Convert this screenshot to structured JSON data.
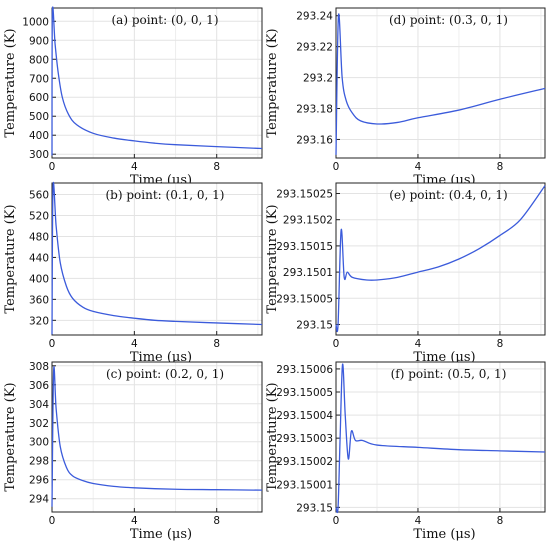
{
  "chart_data": [
    {
      "id": "a",
      "type": "line",
      "title": "(a) point: (0, 0, 1)",
      "xlabel": "Time (μs)",
      "ylabel": "Temperature (K)",
      "xlim": [
        0,
        10.2
      ],
      "ylim": [
        280,
        1070
      ],
      "x_ticks": [
        "0",
        "4",
        "8"
      ],
      "x_tick_values": [
        0,
        4,
        8
      ],
      "y_ticks": [
        "300",
        "400",
        "500",
        "600",
        "700",
        "800",
        "900",
        "1000"
      ],
      "y_tick_values": [
        300,
        400,
        500,
        600,
        700,
        800,
        900,
        1000
      ],
      "grid": true,
      "color": "#3b5bdb",
      "series": [
        {
          "values": [
            [
              0,
              293.15
            ],
            [
              0.02,
              1050
            ],
            [
              0.15,
              880
            ],
            [
              0.3,
              730
            ],
            [
              0.5,
              600
            ],
            [
              0.8,
              510
            ],
            [
              1.2,
              455
            ],
            [
              2,
              410
            ],
            [
              3,
              385
            ],
            [
              4,
              370
            ],
            [
              5,
              358
            ],
            [
              6,
              350
            ],
            [
              8,
              340
            ],
            [
              10.2,
              330
            ]
          ]
        }
      ]
    },
    {
      "id": "b",
      "type": "line",
      "title": "(b) point: (0.1, 0, 1)",
      "xlabel": "Time (μs)",
      "ylabel": "Temperature (K)",
      "xlim": [
        0,
        10.2
      ],
      "ylim": [
        292,
        582
      ],
      "x_ticks": [
        "0",
        "4",
        "8"
      ],
      "x_tick_values": [
        0,
        4,
        8
      ],
      "y_ticks": [
        "320",
        "360",
        "400",
        "440",
        "480",
        "520",
        "560"
      ],
      "y_tick_values": [
        320,
        360,
        400,
        440,
        480,
        520,
        560
      ],
      "grid": true,
      "color": "#3b5bdb",
      "series": [
        {
          "values": [
            [
              0,
              293.15
            ],
            [
              0.05,
              575
            ],
            [
              0.2,
              500
            ],
            [
              0.4,
              430
            ],
            [
              0.7,
              385
            ],
            [
              1,
              362
            ],
            [
              1.5,
              345
            ],
            [
              2,
              337
            ],
            [
              3,
              329
            ],
            [
              4,
              324
            ],
            [
              5,
              320
            ],
            [
              6,
              318
            ],
            [
              8,
              315
            ],
            [
              10.2,
              312
            ]
          ]
        }
      ]
    },
    {
      "id": "c",
      "type": "line",
      "title": "(c) point: (0.2, 0, 1)",
      "xlabel": "Time (μs)",
      "ylabel": "Temperature (K)",
      "xlim": [
        0,
        10.2
      ],
      "ylim": [
        292.6,
        308.4
      ],
      "x_ticks": [
        "0",
        "4",
        "8"
      ],
      "x_tick_values": [
        0,
        4,
        8
      ],
      "y_ticks": [
        "294",
        "296",
        "298",
        "300",
        "302",
        "304",
        "306",
        "308"
      ],
      "y_tick_values": [
        294,
        296,
        298,
        300,
        302,
        304,
        306,
        308
      ],
      "grid": true,
      "color": "#3b5bdb",
      "series": [
        {
          "values": [
            [
              0,
              293.15
            ],
            [
              0.08,
              307.5
            ],
            [
              0.2,
              303.5
            ],
            [
              0.4,
              299.5
            ],
            [
              0.7,
              297.3
            ],
            [
              1,
              296.4
            ],
            [
              1.5,
              295.9
            ],
            [
              2,
              295.6
            ],
            [
              3,
              295.3
            ],
            [
              4,
              295.15
            ],
            [
              6,
              295.0
            ],
            [
              8,
              294.95
            ],
            [
              10.2,
              294.9
            ]
          ]
        }
      ]
    },
    {
      "id": "d",
      "type": "line",
      "title": "(d) point: (0.3, 0, 1)",
      "xlabel": "Time (μs)",
      "ylabel": "Temperature (K)",
      "xlim": [
        0,
        10.2
      ],
      "ylim": [
        293.148,
        293.245
      ],
      "x_ticks": [
        "0",
        "4",
        "8"
      ],
      "x_tick_values": [
        0,
        4,
        8
      ],
      "y_ticks": [
        "293.16",
        "293.18",
        "293.2",
        "293.22",
        "293.24"
      ],
      "y_tick_values": [
        293.16,
        293.18,
        293.2,
        293.22,
        293.24
      ],
      "grid": true,
      "color": "#3b5bdb",
      "series": [
        {
          "values": [
            [
              0,
              293.15
            ],
            [
              0.12,
              293.24
            ],
            [
              0.3,
              293.2
            ],
            [
              0.5,
              293.185
            ],
            [
              0.8,
              293.177
            ],
            [
              1.2,
              293.172
            ],
            [
              2,
              293.17
            ],
            [
              3,
              293.171
            ],
            [
              4,
              293.174
            ],
            [
              6,
              293.179
            ],
            [
              8,
              293.186
            ],
            [
              10.2,
              293.193
            ]
          ]
        }
      ]
    },
    {
      "id": "e",
      "type": "line",
      "title": "(e) point: (0.4, 0, 1)",
      "xlabel": "Time (μs)",
      "ylabel": "Temperature (K)",
      "xlim": [
        0,
        10.2
      ],
      "ylim": [
        293.14998,
        293.15027
      ],
      "x_ticks": [
        "0",
        "4",
        "8"
      ],
      "x_tick_values": [
        0,
        4,
        8
      ],
      "y_ticks": [
        "293.15",
        "293.15005",
        "293.1501",
        "293.15015",
        "293.1502",
        "293.15025"
      ],
      "y_tick_values": [
        293.15,
        293.15005,
        293.1501,
        293.15015,
        293.1502,
        293.15025
      ],
      "grid": true,
      "color": "#3b5bdb",
      "series": [
        {
          "values": [
            [
              0,
              293.15
            ],
            [
              0.1,
              293.15
            ],
            [
              0.25,
              293.15018
            ],
            [
              0.4,
              293.15009
            ],
            [
              0.55,
              293.1501
            ],
            [
              0.8,
              293.15009
            ],
            [
              1.5,
              293.150085
            ],
            [
              2,
              293.150085
            ],
            [
              3,
              293.15009
            ],
            [
              4,
              293.1501
            ],
            [
              5,
              293.15011
            ],
            [
              6,
              293.150125
            ],
            [
              7,
              293.150145
            ],
            [
              8,
              293.15017
            ],
            [
              9,
              293.1502
            ],
            [
              10.2,
              293.150265
            ]
          ]
        }
      ]
    },
    {
      "id": "f",
      "type": "line",
      "title": "(f) point: (0.5, 0, 1)",
      "xlabel": "Time (μs)",
      "ylabel": "Temperature (K)",
      "xlim": [
        0,
        10.2
      ],
      "ylim": [
        293.149998,
        293.150063
      ],
      "x_ticks": [
        "0",
        "4",
        "8"
      ],
      "x_tick_values": [
        0,
        4,
        8
      ],
      "y_ticks": [
        "293.15",
        "293.15001",
        "293.15002",
        "293.15003",
        "293.15004",
        "293.15005",
        "293.15006"
      ],
      "y_tick_values": [
        293.15,
        293.15001,
        293.15002,
        293.15003,
        293.15004,
        293.15005,
        293.15006
      ],
      "grid": true,
      "color": "#3b5bdb",
      "series": [
        {
          "values": [
            [
              0,
              293.15
            ],
            [
              0.1,
              293.15
            ],
            [
              0.2,
              293.15003
            ],
            [
              0.32,
              293.150062
            ],
            [
              0.45,
              293.15004
            ],
            [
              0.6,
              293.150021
            ],
            [
              0.75,
              293.150033
            ],
            [
              0.95,
              293.150029
            ],
            [
              1.3,
              293.150029
            ],
            [
              2,
              293.150027
            ],
            [
              4,
              293.150026
            ],
            [
              6,
              293.150025
            ],
            [
              8,
              293.1500245
            ],
            [
              10.2,
              293.150024
            ]
          ]
        }
      ]
    }
  ]
}
